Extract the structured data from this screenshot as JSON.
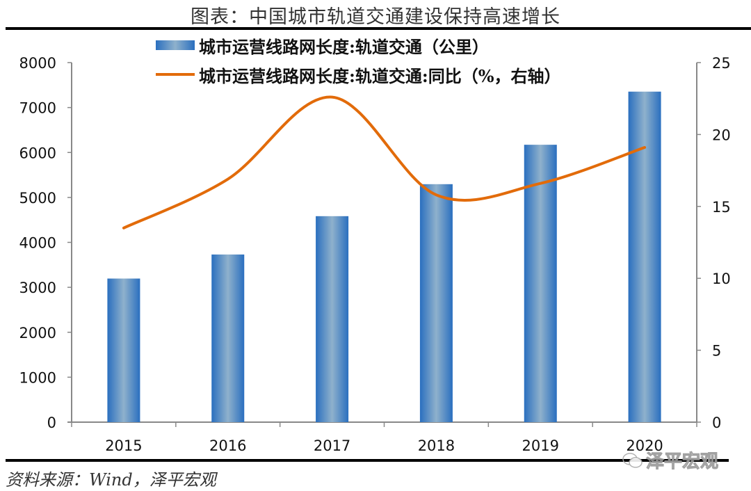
{
  "title": "图表：中国城市轨道交通建设保持高速增长",
  "legend": {
    "bar_label": "城市运营线路网长度:轨道交通（公里）",
    "line_label": "城市运营线路网长度:轨道交通:同比（%，右轴）"
  },
  "source": "资料来源：Wind，泽平宏观",
  "watermark": "泽平宏观",
  "colors": {
    "bar": "#2a6fbf",
    "bar_highlight": "#8fb1cc",
    "line": "#e26b0a",
    "axis": "#888888"
  },
  "chart_data": {
    "type": "bar+line",
    "title": "图表：中国城市轨道交通建设保持高速增长",
    "categories": [
      "2015",
      "2016",
      "2017",
      "2018",
      "2019",
      "2020"
    ],
    "series": [
      {
        "name": "城市运营线路网长度:轨道交通（公里）",
        "type": "bar",
        "axis": "left",
        "values": [
          3195,
          3730,
          4583,
          5295,
          6172,
          7354
        ]
      },
      {
        "name": "城市运营线路网长度:轨道交通:同比（%，右轴）",
        "type": "line",
        "axis": "right",
        "smooth": true,
        "values": [
          13.5,
          16.9,
          22.6,
          15.8,
          16.6,
          19.1
        ]
      }
    ],
    "y_left": {
      "ylim": [
        0,
        8000
      ],
      "ticks": [
        0,
        1000,
        2000,
        3000,
        4000,
        5000,
        6000,
        7000,
        8000
      ]
    },
    "y_right": {
      "ylim": [
        0,
        25
      ],
      "ticks": [
        0,
        5,
        10,
        15,
        20,
        25
      ]
    },
    "xlabel": "",
    "ylabel": "",
    "grid": false,
    "legend_position": "top"
  }
}
